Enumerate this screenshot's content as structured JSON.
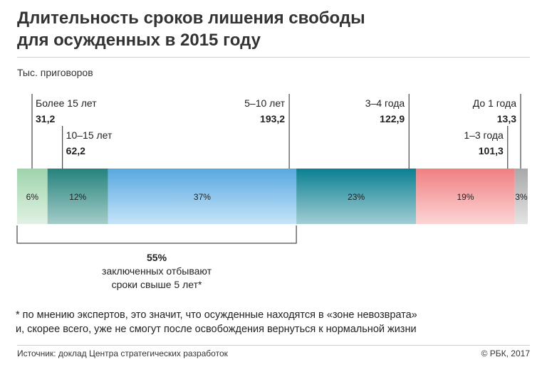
{
  "header": {
    "title": "Длительность сроков лишения свободы\nдля осужденных в 2015 году",
    "unit": "Тыс. приговоров"
  },
  "chart_data": {
    "type": "bar",
    "orientation": "stacked-horizontal",
    "segments": [
      {
        "label": "Более 15 лет",
        "value": 31.2,
        "value_label": "31,2",
        "percent": 6,
        "percent_label": "6%",
        "color_top": "#9ed4ab",
        "color_bottom": "#e1f1e4"
      },
      {
        "label": "10–15 лет",
        "value": 62.2,
        "value_label": "62,2",
        "percent": 12,
        "percent_label": "12%",
        "color_top": "#25827d",
        "color_bottom": "#a4ccc8"
      },
      {
        "label": "5–10 лет",
        "value": 193.2,
        "value_label": "193,2",
        "percent": 37,
        "percent_label": "37%",
        "color_top": "#58a8e0",
        "color_bottom": "#c6e4f9"
      },
      {
        "label": "3–4 года",
        "value": 122.9,
        "value_label": "122,9",
        "percent": 23,
        "percent_label": "23%",
        "color_top": "#0a7f92",
        "color_bottom": "#a2cdd4"
      },
      {
        "label": "1–3 года",
        "value": 101.3,
        "value_label": "101,3",
        "percent": 19,
        "percent_label": "19%",
        "color_top": "#f07f82",
        "color_bottom": "#fcd5d5"
      },
      {
        "label": "До 1 года",
        "value": 13.3,
        "value_label": "13,3",
        "percent": 3,
        "percent_label": "3%",
        "color_top": "#a8a8a8",
        "color_bottom": "#e4e4e4"
      }
    ],
    "annotation": {
      "value": "55%",
      "line1": "заключенных отбывают",
      "line2": "сроки свыше 5 лет*"
    }
  },
  "footnote": "* по мнению экспертов, это значит, что осужденные находятся в «зоне невозврата»\n   и, скорее всего, уже не смогут после освобождения вернуться к нормальной жизни",
  "footer": {
    "source": "Источник: доклад Центра стратегических разработок",
    "copyright": "© РБК, 2017"
  }
}
